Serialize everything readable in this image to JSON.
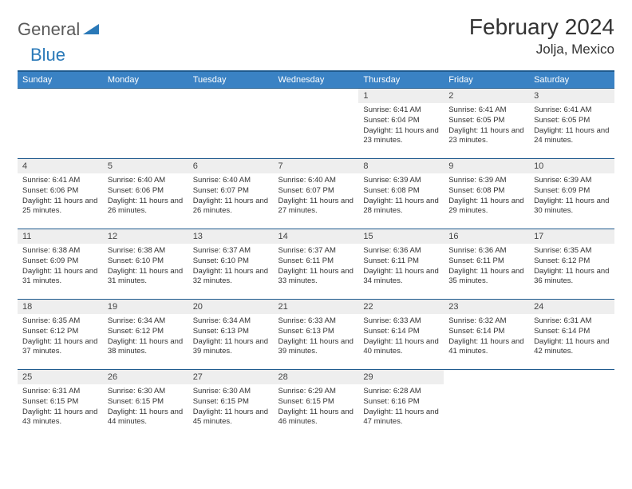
{
  "colors": {
    "header_bg": "#3a82c4",
    "header_border": "#1f5a8e",
    "dayrow_bg": "#eeeeee",
    "text": "#333333",
    "logo_gray": "#5a5a5a",
    "logo_blue": "#2a79b8"
  },
  "logo": {
    "part1": "General",
    "part2": "Blue"
  },
  "title": "February 2024",
  "location": "Jolja, Mexico",
  "weekdays": [
    "Sunday",
    "Monday",
    "Tuesday",
    "Wednesday",
    "Thursday",
    "Friday",
    "Saturday"
  ],
  "weeks": [
    [
      null,
      null,
      null,
      null,
      {
        "n": "1",
        "sr": "6:41 AM",
        "ss": "6:04 PM",
        "dl": "11 hours and 23 minutes."
      },
      {
        "n": "2",
        "sr": "6:41 AM",
        "ss": "6:05 PM",
        "dl": "11 hours and 23 minutes."
      },
      {
        "n": "3",
        "sr": "6:41 AM",
        "ss": "6:05 PM",
        "dl": "11 hours and 24 minutes."
      }
    ],
    [
      {
        "n": "4",
        "sr": "6:41 AM",
        "ss": "6:06 PM",
        "dl": "11 hours and 25 minutes."
      },
      {
        "n": "5",
        "sr": "6:40 AM",
        "ss": "6:06 PM",
        "dl": "11 hours and 26 minutes."
      },
      {
        "n": "6",
        "sr": "6:40 AM",
        "ss": "6:07 PM",
        "dl": "11 hours and 26 minutes."
      },
      {
        "n": "7",
        "sr": "6:40 AM",
        "ss": "6:07 PM",
        "dl": "11 hours and 27 minutes."
      },
      {
        "n": "8",
        "sr": "6:39 AM",
        "ss": "6:08 PM",
        "dl": "11 hours and 28 minutes."
      },
      {
        "n": "9",
        "sr": "6:39 AM",
        "ss": "6:08 PM",
        "dl": "11 hours and 29 minutes."
      },
      {
        "n": "10",
        "sr": "6:39 AM",
        "ss": "6:09 PM",
        "dl": "11 hours and 30 minutes."
      }
    ],
    [
      {
        "n": "11",
        "sr": "6:38 AM",
        "ss": "6:09 PM",
        "dl": "11 hours and 31 minutes."
      },
      {
        "n": "12",
        "sr": "6:38 AM",
        "ss": "6:10 PM",
        "dl": "11 hours and 31 minutes."
      },
      {
        "n": "13",
        "sr": "6:37 AM",
        "ss": "6:10 PM",
        "dl": "11 hours and 32 minutes."
      },
      {
        "n": "14",
        "sr": "6:37 AM",
        "ss": "6:11 PM",
        "dl": "11 hours and 33 minutes."
      },
      {
        "n": "15",
        "sr": "6:36 AM",
        "ss": "6:11 PM",
        "dl": "11 hours and 34 minutes."
      },
      {
        "n": "16",
        "sr": "6:36 AM",
        "ss": "6:11 PM",
        "dl": "11 hours and 35 minutes."
      },
      {
        "n": "17",
        "sr": "6:35 AM",
        "ss": "6:12 PM",
        "dl": "11 hours and 36 minutes."
      }
    ],
    [
      {
        "n": "18",
        "sr": "6:35 AM",
        "ss": "6:12 PM",
        "dl": "11 hours and 37 minutes."
      },
      {
        "n": "19",
        "sr": "6:34 AM",
        "ss": "6:12 PM",
        "dl": "11 hours and 38 minutes."
      },
      {
        "n": "20",
        "sr": "6:34 AM",
        "ss": "6:13 PM",
        "dl": "11 hours and 39 minutes."
      },
      {
        "n": "21",
        "sr": "6:33 AM",
        "ss": "6:13 PM",
        "dl": "11 hours and 39 minutes."
      },
      {
        "n": "22",
        "sr": "6:33 AM",
        "ss": "6:14 PM",
        "dl": "11 hours and 40 minutes."
      },
      {
        "n": "23",
        "sr": "6:32 AM",
        "ss": "6:14 PM",
        "dl": "11 hours and 41 minutes."
      },
      {
        "n": "24",
        "sr": "6:31 AM",
        "ss": "6:14 PM",
        "dl": "11 hours and 42 minutes."
      }
    ],
    [
      {
        "n": "25",
        "sr": "6:31 AM",
        "ss": "6:15 PM",
        "dl": "11 hours and 43 minutes."
      },
      {
        "n": "26",
        "sr": "6:30 AM",
        "ss": "6:15 PM",
        "dl": "11 hours and 44 minutes."
      },
      {
        "n": "27",
        "sr": "6:30 AM",
        "ss": "6:15 PM",
        "dl": "11 hours and 45 minutes."
      },
      {
        "n": "28",
        "sr": "6:29 AM",
        "ss": "6:15 PM",
        "dl": "11 hours and 46 minutes."
      },
      {
        "n": "29",
        "sr": "6:28 AM",
        "ss": "6:16 PM",
        "dl": "11 hours and 47 minutes."
      },
      null,
      null
    ]
  ],
  "labels": {
    "sunrise": "Sunrise:",
    "sunset": "Sunset:",
    "daylight": "Daylight:"
  }
}
